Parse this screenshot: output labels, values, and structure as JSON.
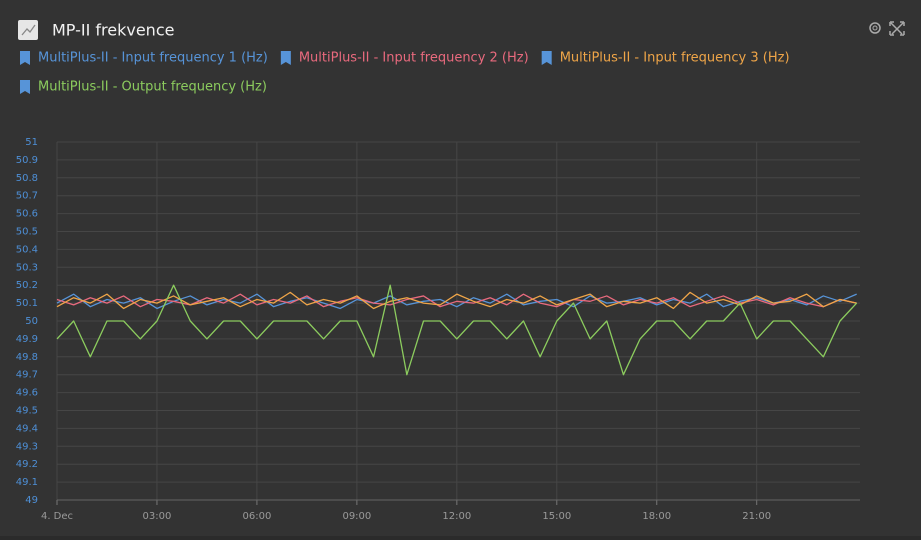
{
  "chart_data": {
    "type": "line",
    "title": "MP-II frekvence",
    "x": [
      0,
      0.5,
      1,
      1.5,
      2,
      2.5,
      3,
      3.5,
      4,
      4.5,
      5,
      5.5,
      6,
      6.5,
      7,
      7.5,
      8,
      8.5,
      9,
      9.5,
      10,
      10.5,
      11,
      11.5,
      12,
      12.5,
      13,
      13.5,
      14,
      14.5,
      15,
      15.5,
      16,
      16.5,
      17,
      17.5,
      18,
      18.5,
      19,
      19.5,
      20,
      20.5,
      21,
      21.5,
      22,
      22.5,
      23,
      23.5,
      24
    ],
    "xlim": [
      0,
      24.1
    ],
    "xticks": [
      {
        "value": 0,
        "label": "4. Dec"
      },
      {
        "value": 3,
        "label": "03:00"
      },
      {
        "value": 6,
        "label": "06:00"
      },
      {
        "value": 9,
        "label": "09:00"
      },
      {
        "value": 12,
        "label": "12:00"
      },
      {
        "value": 15,
        "label": "15:00"
      },
      {
        "value": 18,
        "label": "18:00"
      },
      {
        "value": 21,
        "label": "21:00"
      }
    ],
    "ylim": [
      49,
      51
    ],
    "yticks": [
      49,
      49.1,
      49.2,
      49.3,
      49.4,
      49.5,
      49.6,
      49.7,
      49.8,
      49.9,
      50,
      50.1,
      50.2,
      50.3,
      50.4,
      50.5,
      50.6,
      50.7,
      50.8,
      50.9,
      51
    ],
    "grid": true,
    "series": [
      {
        "name": "MultiPlus-II - Input frequency 1 (Hz)",
        "color": "#5794d8",
        "values": [
          50.1,
          50.15,
          50.08,
          50.12,
          50.1,
          50.13,
          50.07,
          50.11,
          50.14,
          50.09,
          50.12,
          50.1,
          50.15,
          50.08,
          50.11,
          50.13,
          50.1,
          50.07,
          50.12,
          50.1,
          50.14,
          50.09,
          50.11,
          50.12,
          50.08,
          50.13,
          50.1,
          50.15,
          50.09,
          50.11,
          50.12,
          50.08,
          50.14,
          50.1,
          50.11,
          50.13,
          50.09,
          50.12,
          50.1,
          50.15,
          50.08,
          50.11,
          50.13,
          50.1,
          50.12,
          50.09,
          50.14,
          50.11,
          50.15
        ]
      },
      {
        "name": "MultiPlus-II - Input frequency 2 (Hz)",
        "color": "#e96a7e",
        "values": [
          50.12,
          50.09,
          50.13,
          50.1,
          50.14,
          50.08,
          50.12,
          50.11,
          50.09,
          50.13,
          50.1,
          50.15,
          50.09,
          50.12,
          50.1,
          50.14,
          50.08,
          50.11,
          50.13,
          50.1,
          50.09,
          50.12,
          50.14,
          50.08,
          50.11,
          50.1,
          50.13,
          50.09,
          50.15,
          50.1,
          50.08,
          50.12,
          50.11,
          50.14,
          50.09,
          50.12,
          50.1,
          50.13,
          50.08,
          50.11,
          50.14,
          50.1,
          50.12,
          50.09,
          50.13,
          50.1,
          50.08,
          50.12,
          50.1
        ]
      },
      {
        "name": "MultiPlus-II - Input frequency 3 (Hz)",
        "color": "#efa548",
        "values": [
          50.08,
          50.13,
          50.1,
          50.15,
          50.07,
          50.12,
          50.1,
          50.14,
          50.09,
          50.11,
          50.13,
          50.08,
          50.12,
          50.1,
          50.16,
          50.09,
          50.12,
          50.1,
          50.14,
          50.07,
          50.11,
          50.13,
          50.1,
          50.09,
          50.15,
          50.11,
          50.08,
          50.12,
          50.1,
          50.14,
          50.09,
          50.12,
          50.15,
          50.08,
          50.11,
          50.1,
          50.13,
          50.07,
          50.16,
          50.1,
          50.12,
          50.09,
          50.14,
          50.1,
          50.11,
          50.15,
          50.08,
          50.12,
          50.1
        ]
      },
      {
        "name": "MultiPlus-II - Output frequency (Hz)",
        "color": "#8ccc5e",
        "values": [
          49.9,
          50.0,
          49.8,
          50.0,
          50.0,
          49.9,
          50.0,
          50.2,
          50.0,
          49.9,
          50.0,
          50.0,
          49.9,
          50.0,
          50.0,
          50.0,
          49.9,
          50.0,
          50.0,
          49.8,
          50.2,
          49.7,
          50.0,
          50.0,
          49.9,
          50.0,
          50.0,
          49.9,
          50.0,
          49.8,
          50.0,
          50.1,
          49.9,
          50.0,
          49.7,
          49.9,
          50.0,
          50.0,
          49.9,
          50.0,
          50.0,
          50.1,
          49.9,
          50.0,
          50.0,
          49.9,
          49.8,
          50.0,
          50.1
        ]
      }
    ]
  }
}
